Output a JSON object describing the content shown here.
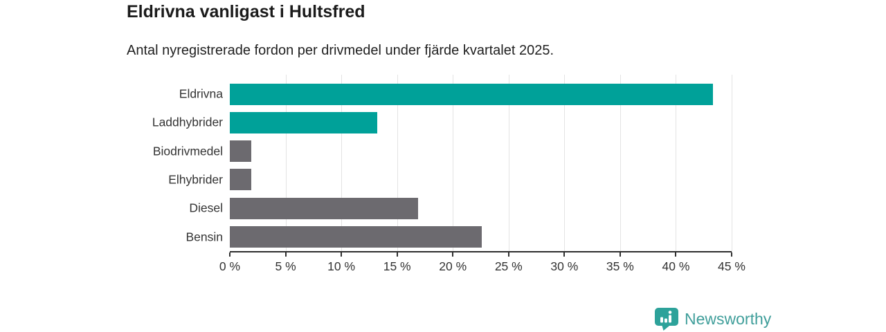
{
  "header": {
    "title": "Eldrivna vanligast i Hultsfred",
    "subtitle": "Antal nyregistrerade fordon per drivmedel under fjärde kvartalet 2025."
  },
  "chart_data": {
    "type": "bar",
    "orientation": "horizontal",
    "categories": [
      "Eldrivna",
      "Laddhybrider",
      "Biodrivmedel",
      "Elhybrider",
      "Diesel",
      "Bensin"
    ],
    "values": [
      43.3,
      13.2,
      1.9,
      1.9,
      16.9,
      22.6
    ],
    "unit": "%",
    "title": "Eldrivna vanligast i Hultsfred",
    "xlabel": "",
    "ylabel": "",
    "xlim": [
      0,
      45
    ],
    "x_ticks": [
      0,
      5,
      10,
      15,
      20,
      25,
      30,
      35,
      40,
      45
    ],
    "x_tick_labels": [
      "0 %",
      "5 %",
      "10 %",
      "15 %",
      "20 %",
      "25 %",
      "30 %",
      "35 %",
      "40 %",
      "45 %"
    ],
    "bar_colors": [
      "#00a199",
      "#00a199",
      "#6c6a6f",
      "#6c6a6f",
      "#6c6a6f",
      "#6c6a6f"
    ],
    "grid": true,
    "legend": false
  },
  "colors": {
    "accent_teal": "#00a199",
    "bar_gray": "#6c6a6f",
    "gridline": "#e3e3e3",
    "axis": "#2e2e2e",
    "text_dark": "#1b1b1b",
    "logo_teal": "#3f9e9a"
  },
  "footer": {
    "brand": "Newsworthy"
  }
}
